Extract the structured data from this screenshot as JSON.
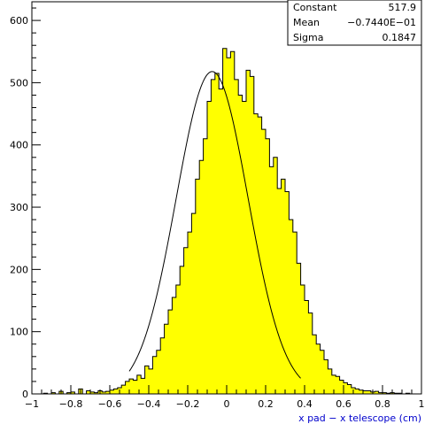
{
  "chart_data": {
    "type": "histogram",
    "title": "",
    "xlabel": "x pad − x telescope (cm)",
    "ylabel": "",
    "xlim": [
      -1,
      1
    ],
    "ylim": [
      0,
      630
    ],
    "grid": false,
    "xticks": [
      {
        "value": -1,
        "label": "−1"
      },
      {
        "value": -0.8,
        "label": "−0.8"
      },
      {
        "value": -0.6,
        "label": "−0.6"
      },
      {
        "value": -0.4,
        "label": "−0.4"
      },
      {
        "value": -0.2,
        "label": "−0.2"
      },
      {
        "value": 0,
        "label": "0"
      },
      {
        "value": 0.2,
        "label": "0.2"
      },
      {
        "value": 0.4,
        "label": "0.4"
      },
      {
        "value": 0.6,
        "label": "0.6"
      },
      {
        "value": 0.8,
        "label": "0.8"
      },
      {
        "value": 1,
        "label": "1"
      }
    ],
    "yticks": [
      {
        "value": 0,
        "label": "0"
      },
      {
        "value": 100,
        "label": "100"
      },
      {
        "value": 200,
        "label": "200"
      },
      {
        "value": 300,
        "label": "300"
      },
      {
        "value": 400,
        "label": "400"
      },
      {
        "value": 500,
        "label": "500"
      },
      {
        "value": 600,
        "label": "600"
      }
    ],
    "bins": {
      "start": -1,
      "end": 1,
      "counts": [
        0,
        0,
        0,
        1,
        0,
        2,
        0,
        4,
        0,
        2,
        3,
        0,
        8,
        0,
        5,
        3,
        2,
        5,
        3,
        4,
        6,
        8,
        10,
        14,
        20,
        24,
        22,
        30,
        25,
        45,
        40,
        60,
        70,
        90,
        112,
        135,
        155,
        175,
        205,
        235,
        260,
        290,
        345,
        375,
        410,
        470,
        505,
        515,
        490,
        555,
        540,
        550,
        505,
        480,
        470,
        520,
        510,
        450,
        445,
        425,
        410,
        365,
        380,
        330,
        345,
        325,
        280,
        260,
        210,
        175,
        150,
        130,
        95,
        80,
        70,
        55,
        40,
        30,
        28,
        22,
        18,
        15,
        10,
        8,
        6,
        5,
        5,
        3,
        4,
        2,
        2,
        1,
        2,
        1,
        1,
        0,
        1,
        0,
        0,
        0
      ]
    },
    "fit": {
      "type": "gaussian",
      "constant": 517.9,
      "mean": -0.0744,
      "sigma": 0.1847,
      "range": [
        -0.5,
        0.38
      ]
    },
    "stats_box": [
      {
        "label": "Constant",
        "value": "517.9"
      },
      {
        "label": "Mean",
        "value": "−0.7440E−01"
      },
      {
        "label": "Sigma",
        "value": "0.1847"
      }
    ],
    "colors": {
      "fill": "#ffff00",
      "outline": "#000000",
      "xlabel": "#0000cc"
    }
  }
}
